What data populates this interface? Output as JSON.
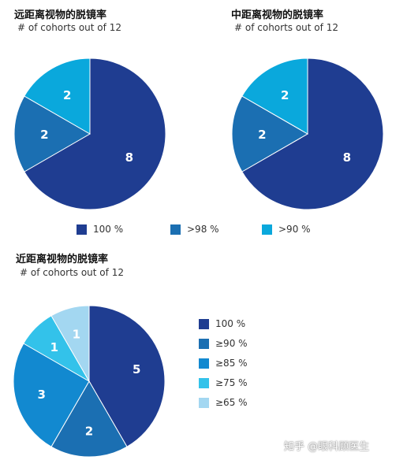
{
  "colors": {
    "c100": "#1f3d91",
    "c98": "#1b6fb2",
    "c90": "#0aa8dc",
    "b100": "#1f3d91",
    "b90": "#1b6fb2",
    "b85": "#1289d0",
    "b75": "#33c2ea",
    "b65": "#a3d7f1"
  },
  "chart_data": [
    {
      "type": "pie",
      "title": "远距离视物的脱镜率",
      "subtitle": "# of cohorts out of 12",
      "slices": [
        {
          "label": "100 %",
          "value": 8
        },
        {
          "label": ">98 %",
          "value": 2
        },
        {
          "label": ">90 %",
          "value": 2
        }
      ]
    },
    {
      "type": "pie",
      "title": "中距离视物的脱镜率",
      "subtitle": "# of cohorts out of 12",
      "slices": [
        {
          "label": "100 %",
          "value": 8
        },
        {
          "label": ">98 %",
          "value": 2
        },
        {
          "label": ">90 %",
          "value": 2
        }
      ]
    },
    {
      "type": "pie",
      "title": "近距离视物的脱镜率",
      "subtitle": "# of cohorts out of 12",
      "slices": [
        {
          "label": "100 %",
          "value": 5
        },
        {
          "label": "≥90 %",
          "value": 2
        },
        {
          "label": "≥85 %",
          "value": 3
        },
        {
          "label": "≥75 %",
          "value": 1
        },
        {
          "label": "≥65 %",
          "value": 1
        }
      ]
    }
  ],
  "legend_top": [
    "100 %",
    ">98 %",
    ">90 %"
  ],
  "legend_bottom": [
    "100 %",
    "≥90 %",
    "≥85 %",
    "≥75 %",
    "≥65 %"
  ],
  "watermark": "知乎 @眼科顾医生"
}
